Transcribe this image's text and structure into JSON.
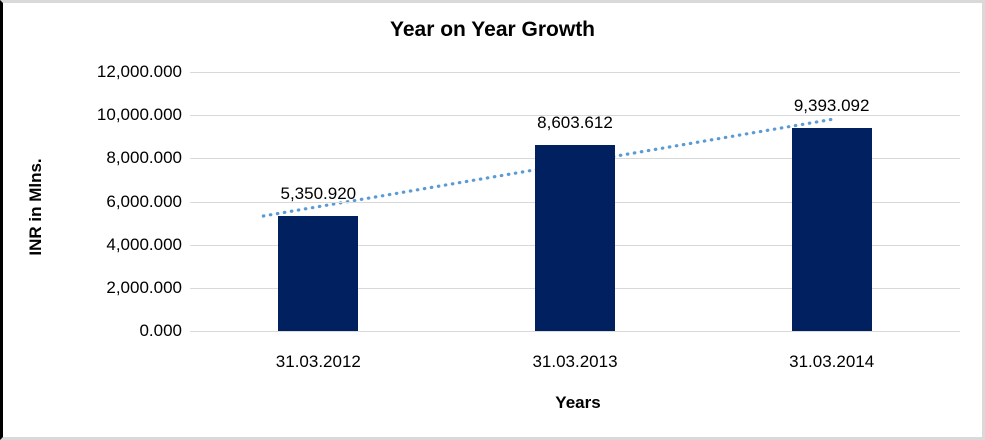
{
  "chart": {
    "title": "Year on Year Growth",
    "x_axis_title": "Years",
    "y_axis_title": "INR in Mlns."
  },
  "chart_data": {
    "type": "bar",
    "title": "Year on Year Growth",
    "xlabel": "Years",
    "ylabel": "INR in Mlns.",
    "categories": [
      "31.03.2012",
      "31.03.2013",
      "31.03.2014"
    ],
    "values": [
      5350.92,
      8603.612,
      9393.092
    ],
    "data_labels": [
      "5,350.920",
      "8,603.612",
      "9,393.092"
    ],
    "ylim": [
      0,
      12000
    ],
    "yticks": [
      0,
      2000,
      4000,
      6000,
      8000,
      10000,
      12000
    ],
    "ytick_labels": [
      "0.000",
      "2,000.000",
      "4,000.000",
      "6,000.000",
      "8,000.000",
      "10,000.000",
      "12,000.000"
    ],
    "grid": true,
    "legend": "none",
    "bar_color": "#002060",
    "gridline_color": "#d9d9d9",
    "trendline": {
      "type": "linear",
      "style": "dotted",
      "color": "#5b9bd5"
    }
  }
}
